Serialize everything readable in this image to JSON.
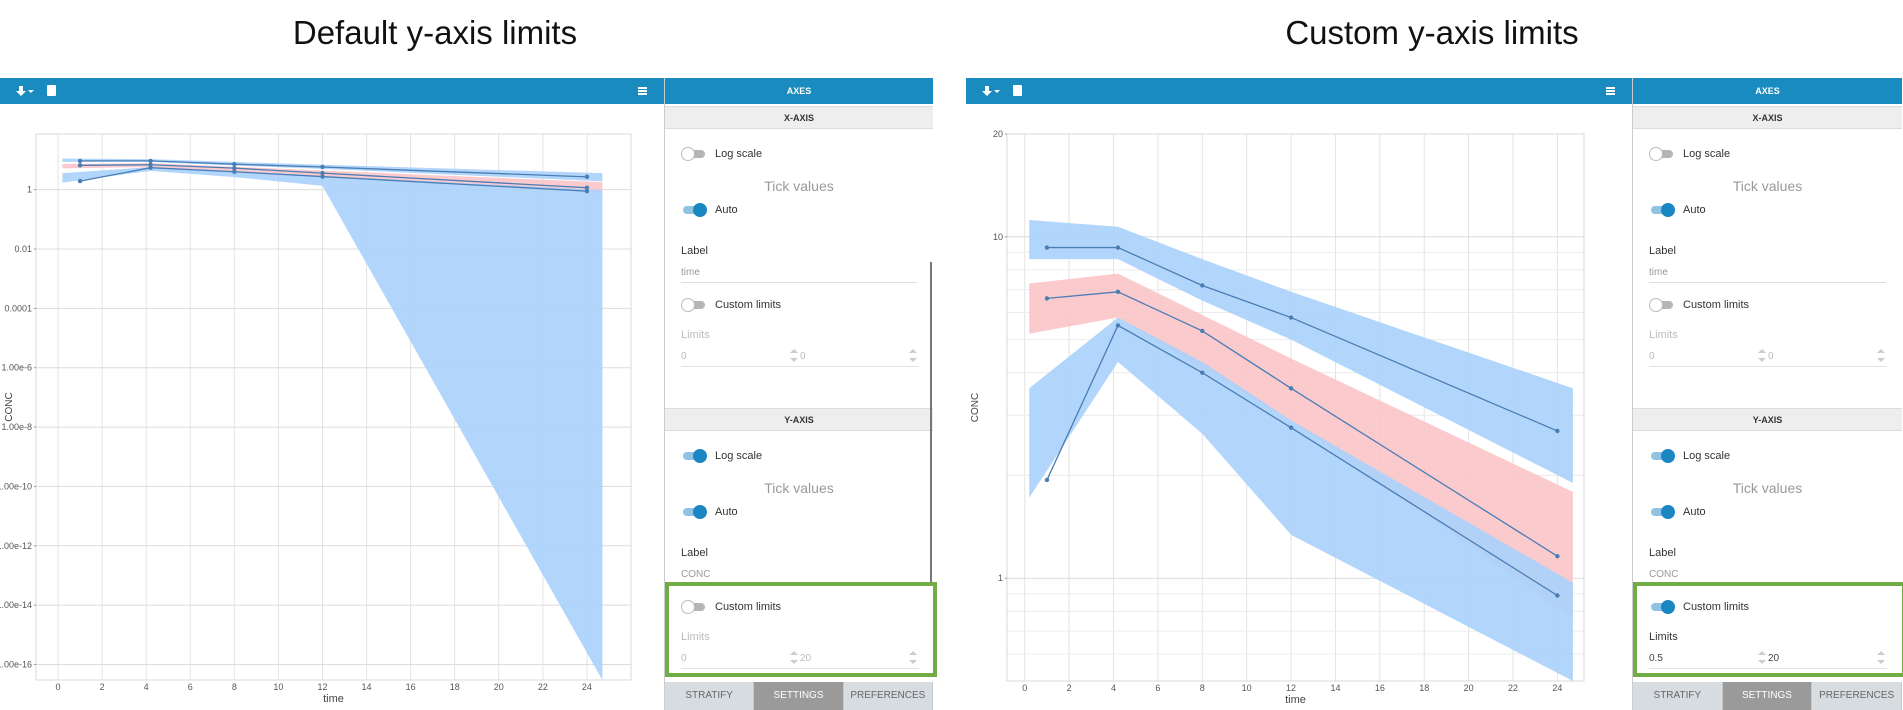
{
  "panels": [
    {
      "title": "Default y-axis limits",
      "chart": {
        "type": "line",
        "x_label": "time",
        "y_label": "CONC",
        "log_y": true,
        "grid": true,
        "x": [
          1,
          4.2,
          8,
          12,
          24
        ],
        "series": [
          {
            "color": "#4a7db5",
            "values": [
              9.3,
              9.3,
              7.2,
              5.8,
              2.7
            ]
          },
          {
            "color": "#4a7db5",
            "values": [
              6.6,
              6.9,
              5.3,
              3.6,
              1.16
            ]
          },
          {
            "color": "#4a7db5",
            "values": [
              1.94,
              5.5,
              4.0,
              2.76,
              0.89
            ]
          }
        ],
        "bands": {
          "x": [
            0.2,
            4.2,
            8,
            12,
            24.7
          ],
          "items": [
            {
              "color": "#aad1fb",
              "upper": [
                11.2,
                10.7,
                8.6,
                6.9,
                3.6
              ],
              "lower": [
                8.6,
                8.6,
                6.5,
                5.0,
                1.9
              ]
            },
            {
              "color": "#f9c4c8",
              "upper": [
                7.3,
                7.8,
                5.9,
                4.4,
                1.79
              ],
              "lower": [
                5.2,
                5.8,
                4.1,
                2.9,
                0.76
              ]
            },
            {
              "color": "#aad1fb",
              "upper": [
                3.6,
                5.8,
                4.3,
                2.9,
                0.97
              ],
              "lower": [
                1.72,
                4.3,
                2.65,
                1.34,
                3e-17
              ]
            }
          ]
        },
        "xlim": [
          -1,
          26
        ],
        "xticks": [
          0,
          2,
          4,
          6,
          8,
          10,
          12,
          14,
          16,
          18,
          20,
          22,
          24
        ],
        "ylim": [
          3e-17,
          75
        ],
        "yticks": [
          1,
          0.01,
          0.0001,
          {
            "value": 1e-06,
            "label": "1.00e-6"
          },
          {
            "value": 1e-08,
            "label": "1.00e-8"
          },
          {
            "value": 1e-10,
            "label": "1.00e-10"
          },
          {
            "value": 1e-12,
            "label": "1.00e-12"
          },
          {
            "value": 1e-14,
            "label": "1.00e-14"
          },
          {
            "value": 1e-16,
            "label": "1.00e-16"
          }
        ]
      },
      "sidebar": {
        "header": "AXES",
        "sections": [
          {
            "title": "X-AXIS",
            "log_scale": {
              "label": "Log scale",
              "on": false
            },
            "tick_values": "Tick values",
            "auto": {
              "label": "Auto",
              "on": true
            },
            "label_caption": "Label",
            "label_value": "time",
            "custom_limits": {
              "label": "Custom limits",
              "on": false
            },
            "limits_caption": "Limits",
            "limits": [
              0,
              0
            ]
          },
          {
            "title": "Y-AXIS",
            "log_scale": {
              "label": "Log scale",
              "on": true
            },
            "tick_values": "Tick values",
            "auto": {
              "label": "Auto",
              "on": true
            },
            "label_caption": "Label",
            "label_value": "CONC",
            "custom_limits": {
              "label": "Custom limits",
              "on": false
            },
            "limits_caption": "Limits",
            "limits": [
              0,
              20
            ]
          }
        ],
        "tabs": [
          "STRATIFY",
          "SETTINGS",
          "PREFERENCES"
        ],
        "active_tab": 1
      }
    },
    {
      "title": "Custom y-axis limits",
      "chart": {
        "type": "line",
        "x_label": "time",
        "y_label": "CONC",
        "log_y": true,
        "grid": true,
        "x": [
          1,
          4.2,
          8,
          12,
          24
        ],
        "series": [
          {
            "color": "#4a7db5",
            "values": [
              9.3,
              9.3,
              7.2,
              5.8,
              2.7
            ]
          },
          {
            "color": "#4a7db5",
            "values": [
              6.6,
              6.9,
              5.3,
              3.6,
              1.16
            ]
          },
          {
            "color": "#4a7db5",
            "values": [
              1.94,
              5.5,
              4.0,
              2.76,
              0.89
            ]
          }
        ],
        "bands": {
          "x": [
            0.2,
            4.2,
            8,
            12,
            24.7
          ],
          "items": [
            {
              "color": "#aad1fb",
              "upper": [
                11.2,
                10.7,
                8.6,
                6.9,
                3.6
              ],
              "lower": [
                8.6,
                8.6,
                6.5,
                5.0,
                1.9
              ]
            },
            {
              "color": "#f9c4c8",
              "upper": [
                7.3,
                7.8,
                5.9,
                4.4,
                1.79
              ],
              "lower": [
                5.2,
                5.8,
                4.1,
                2.9,
                0.76
              ]
            },
            {
              "color": "#aad1fb",
              "upper": [
                3.6,
                5.8,
                4.3,
                2.9,
                0.97
              ],
              "lower": [
                1.72,
                4.3,
                2.65,
                1.34,
                0.5
              ]
            }
          ]
        },
        "xlim": [
          -0.8,
          25.2
        ],
        "xticks": [
          0,
          2,
          4,
          6,
          8,
          10,
          12,
          14,
          16,
          18,
          20,
          22,
          24
        ],
        "ylim": [
          0.5,
          20
        ],
        "yticks": [
          1,
          10,
          20
        ],
        "minor_yticks": [
          0.6,
          0.7,
          0.8,
          0.9,
          2,
          3,
          4,
          5,
          6,
          7,
          8,
          9
        ]
      },
      "sidebar": {
        "header": "AXES",
        "sections": [
          {
            "title": "X-AXIS",
            "log_scale": {
              "label": "Log scale",
              "on": false
            },
            "tick_values": "Tick values",
            "auto": {
              "label": "Auto",
              "on": true
            },
            "label_caption": "Label",
            "label_value": "time",
            "custom_limits": {
              "label": "Custom limits",
              "on": false
            },
            "limits_caption": "Limits",
            "limits": [
              0,
              0
            ]
          },
          {
            "title": "Y-AXIS",
            "log_scale": {
              "label": "Log scale",
              "on": true
            },
            "tick_values": "Tick values",
            "auto": {
              "label": "Auto",
              "on": true
            },
            "label_caption": "Label",
            "label_value": "CONC",
            "custom_limits": {
              "label": "Custom limits",
              "on": true
            },
            "limits_caption": "Limits",
            "limits": [
              0.5,
              20
            ]
          }
        ],
        "tabs": [
          "STRATIFY",
          "SETTINGS",
          "PREFERENCES"
        ],
        "active_tab": 1
      }
    }
  ]
}
